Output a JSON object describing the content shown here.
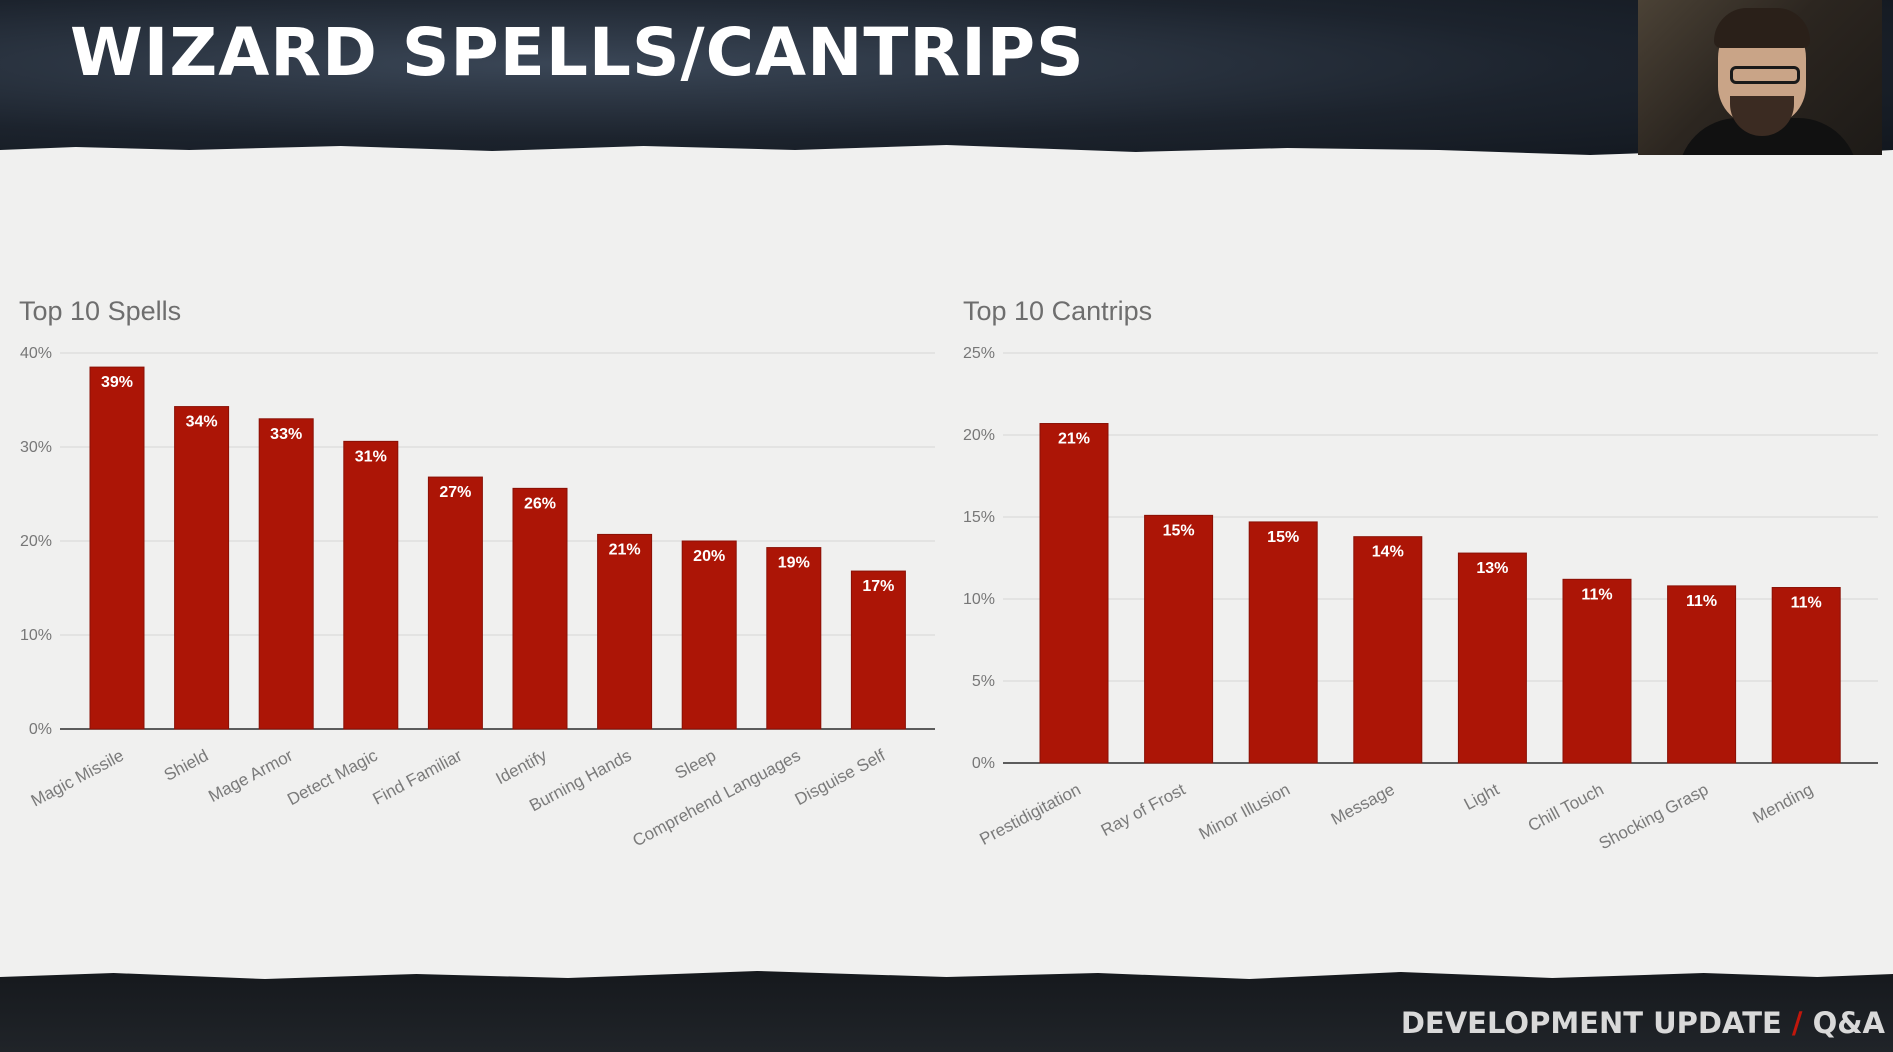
{
  "slide": {
    "title": "WIZARD SPELLS/CANTRIPS",
    "footer_left": "DEVELOPMENT UPDATE",
    "footer_slash": "/",
    "footer_right": "Q&A"
  },
  "colors": {
    "bar": "#ac1506",
    "accent": "#c0170c"
  },
  "chart_data": [
    {
      "type": "bar",
      "title": "Top 10 Spells",
      "xlabel": "",
      "ylabel": "",
      "categories": [
        "Magic Missile",
        "Shield",
        "Mage Armor",
        "Detect Magic",
        "Find Familiar",
        "Identify",
        "Burning Hands",
        "Sleep",
        "Comprehend Languages",
        "Disguise Self"
      ],
      "values": [
        38.5,
        34.3,
        33.0,
        30.6,
        26.8,
        25.6,
        20.7,
        20.0,
        19.3,
        16.8
      ],
      "data_labels": [
        "39%",
        "34%",
        "33%",
        "31%",
        "27%",
        "26%",
        "21%",
        "20%",
        "19%",
        "17%"
      ],
      "yticks": [
        "0%",
        "10%",
        "20%",
        "30%",
        "40%"
      ],
      "ylim": [
        0,
        40
      ],
      "grid": true,
      "legend": "none"
    },
    {
      "type": "bar",
      "title": "Top 10 Cantrips",
      "xlabel": "",
      "ylabel": "",
      "categories": [
        "Prestidigitation",
        "Ray of Frost",
        "Minor Illusion",
        "Message",
        "Light",
        "Chill Touch",
        "Shocking Grasp",
        "Mending"
      ],
      "values": [
        20.7,
        15.1,
        14.7,
        13.8,
        12.8,
        11.2,
        10.8,
        10.7
      ],
      "data_labels": [
        "21%",
        "15%",
        "15%",
        "14%",
        "13%",
        "11%",
        "11%",
        "11%"
      ],
      "yticks": [
        "0%",
        "5%",
        "10%",
        "15%",
        "20%",
        "25%"
      ],
      "ylim": [
        0,
        25
      ],
      "grid": true,
      "legend": "none"
    }
  ]
}
